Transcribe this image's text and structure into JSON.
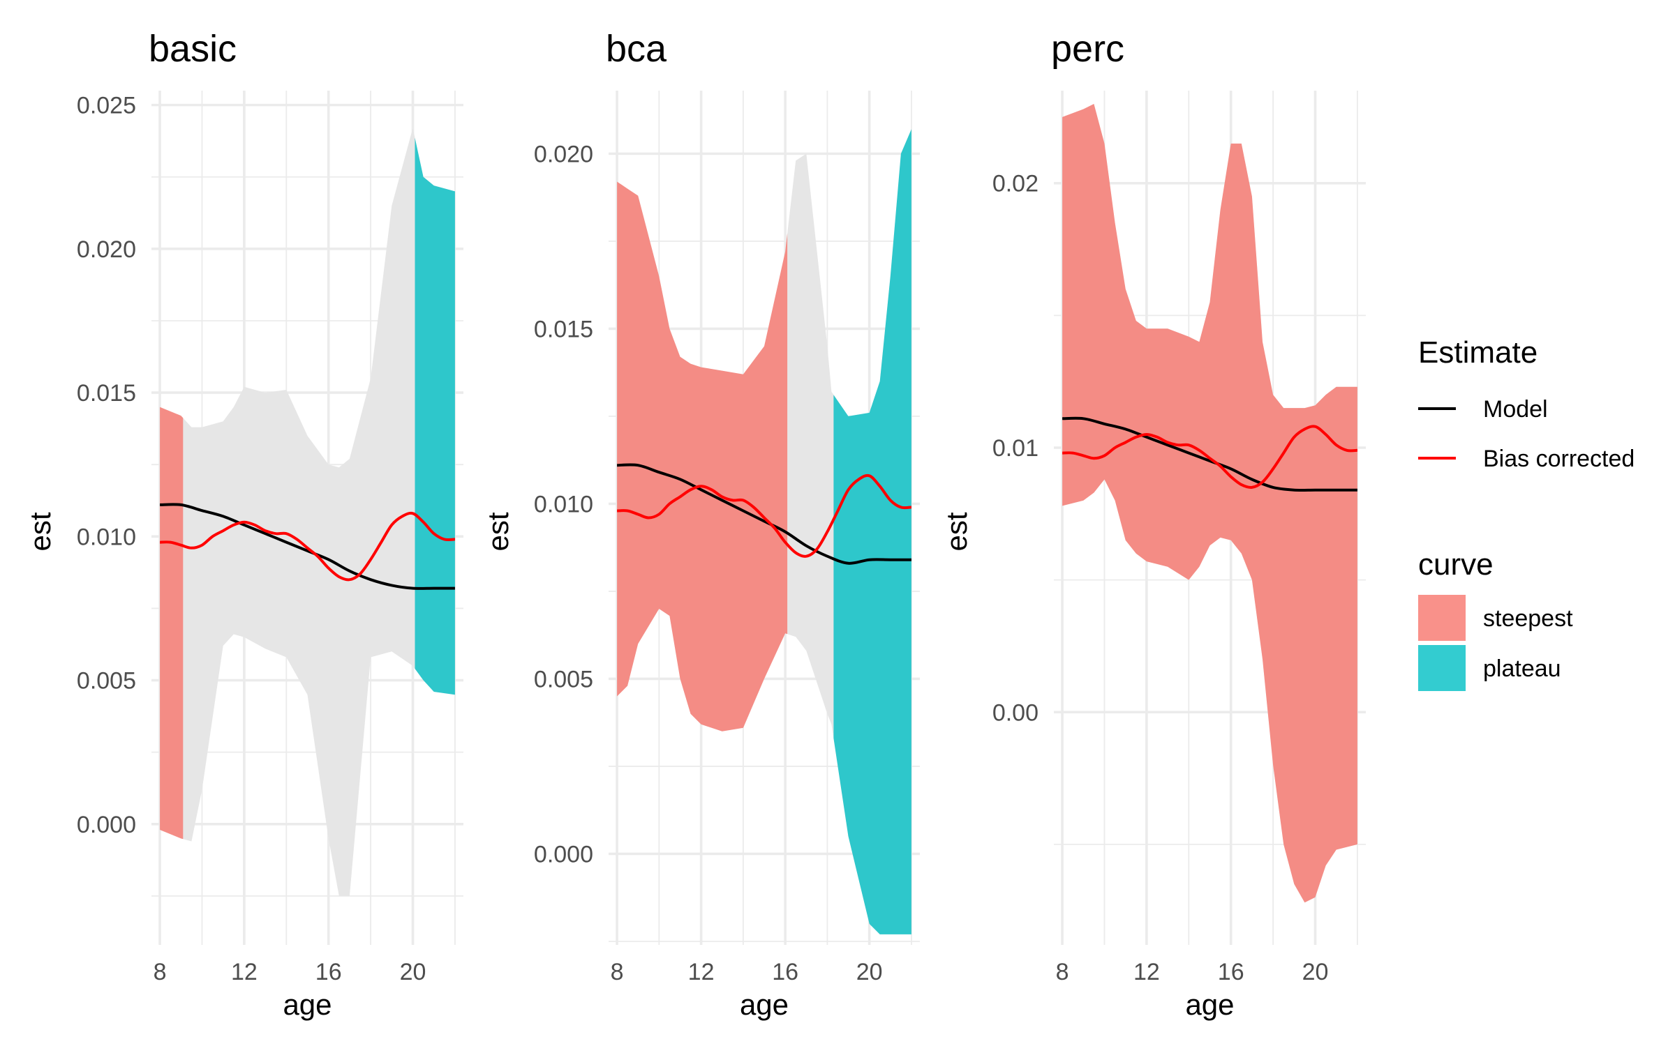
{
  "chart_data": [
    {
      "type": "area",
      "title": "basic",
      "xlabel": "age",
      "ylabel": "est",
      "xlim": [
        7.6,
        22.4
      ],
      "ylim": [
        -0.0042,
        0.0255
      ],
      "x_ticks": [
        "8",
        "12",
        "16",
        "20"
      ],
      "x_tick_values": [
        8,
        12,
        16,
        20
      ],
      "y_ticks": [
        "0.000",
        "0.005",
        "0.010",
        "0.015",
        "0.020",
        "0.025"
      ],
      "y_tick_values": [
        0.0,
        0.005,
        0.01,
        0.015,
        0.02,
        0.025
      ],
      "ribbon": {
        "x": [
          8,
          9,
          9.5,
          10,
          11,
          11.5,
          12,
          13,
          14,
          15,
          16,
          16.5,
          17,
          18,
          19,
          20,
          20.5,
          21,
          22
        ],
        "lower": [
          -0.0002,
          -0.0005,
          -0.0006,
          0.0012,
          0.0062,
          0.0066,
          0.0065,
          0.0061,
          0.0058,
          0.0045,
          -0.0005,
          -0.0025,
          -0.0025,
          0.0058,
          0.006,
          0.0055,
          0.005,
          0.0046,
          0.0045
        ],
        "upper": [
          0.0145,
          0.0142,
          0.0138,
          0.0138,
          0.014,
          0.0145,
          0.0152,
          0.015,
          0.0151,
          0.0135,
          0.0125,
          0.0124,
          0.0127,
          0.0155,
          0.0215,
          0.0242,
          0.0225,
          0.0222,
          0.022
        ]
      },
      "segments": [
        {
          "curve": "steepest",
          "x_from": 8,
          "x_to": 9.1
        },
        {
          "curve": "plateau",
          "x_from": 20.1,
          "x_to": 22
        }
      ],
      "model": {
        "x": [
          8,
          9,
          10,
          11,
          12,
          13,
          14,
          15,
          16,
          17,
          18,
          19,
          20,
          21,
          22
        ],
        "y": [
          0.0111,
          0.0111,
          0.0109,
          0.0107,
          0.0104,
          0.0101,
          0.0098,
          0.0095,
          0.0092,
          0.0088,
          0.0085,
          0.0083,
          0.0082,
          0.0082,
          0.0082
        ]
      },
      "bias_corrected": {
        "x": [
          8,
          8.5,
          9,
          9.5,
          10,
          10.5,
          11,
          11.5,
          12,
          12.5,
          13,
          13.5,
          14,
          14.5,
          15,
          15.5,
          16,
          16.5,
          17,
          17.5,
          18,
          18.5,
          19,
          19.5,
          20,
          20.5,
          21,
          21.5,
          22
        ],
        "y": [
          0.0098,
          0.0098,
          0.0097,
          0.0096,
          0.0097,
          0.01,
          0.0102,
          0.0104,
          0.0105,
          0.0104,
          0.0102,
          0.0101,
          0.0101,
          0.0099,
          0.0096,
          0.0093,
          0.0089,
          0.0086,
          0.0085,
          0.0087,
          0.0092,
          0.0098,
          0.0104,
          0.0107,
          0.0108,
          0.0105,
          0.0101,
          0.0099,
          0.0099
        ]
      }
    },
    {
      "type": "area",
      "title": "bca",
      "xlabel": "age",
      "ylabel": "est",
      "xlim": [
        7.6,
        22.4
      ],
      "ylim": [
        -0.0026,
        0.0218
      ],
      "x_ticks": [
        "8",
        "12",
        "16",
        "20"
      ],
      "x_tick_values": [
        8,
        12,
        16,
        20
      ],
      "y_ticks": [
        "0.000",
        "0.005",
        "0.010",
        "0.015",
        "0.020"
      ],
      "y_tick_values": [
        0.0,
        0.005,
        0.01,
        0.015,
        0.02
      ],
      "ribbon": {
        "x": [
          8,
          8.5,
          9,
          10,
          10.5,
          11,
          11.5,
          12,
          13,
          14,
          15,
          16,
          16.5,
          17,
          18,
          18.2,
          19,
          20,
          20.5,
          21,
          21.5,
          22
        ],
        "lower": [
          0.0045,
          0.0048,
          0.006,
          0.007,
          0.0068,
          0.005,
          0.004,
          0.0037,
          0.0035,
          0.0036,
          0.005,
          0.0063,
          0.0062,
          0.0058,
          0.004,
          0.0037,
          0.0005,
          -0.002,
          -0.0023,
          -0.0023,
          -0.0023,
          -0.0023
        ],
        "upper": [
          0.0192,
          0.019,
          0.0188,
          0.0165,
          0.015,
          0.0142,
          0.014,
          0.0139,
          0.0138,
          0.0137,
          0.0145,
          0.0172,
          0.0198,
          0.02,
          0.0145,
          0.0132,
          0.0125,
          0.0126,
          0.0135,
          0.0165,
          0.02,
          0.0207
        ]
      },
      "segments": [
        {
          "curve": "steepest",
          "x_from": 8,
          "x_to": 16.1
        },
        {
          "curve": "plateau",
          "x_from": 18.3,
          "x_to": 22
        }
      ],
      "model": {
        "x": [
          8,
          9,
          10,
          11,
          12,
          13,
          14,
          15,
          16,
          17,
          18,
          19,
          20,
          21,
          22
        ],
        "y": [
          0.0111,
          0.0111,
          0.0109,
          0.0107,
          0.0104,
          0.0101,
          0.0098,
          0.0095,
          0.0092,
          0.0088,
          0.0085,
          0.0083,
          0.0084,
          0.0084,
          0.0084
        ]
      },
      "bias_corrected": {
        "x": [
          8,
          8.5,
          9,
          9.5,
          10,
          10.5,
          11,
          11.5,
          12,
          12.5,
          13,
          13.5,
          14,
          14.5,
          15,
          15.5,
          16,
          16.5,
          17,
          17.5,
          18,
          18.5,
          19,
          19.5,
          20,
          20.5,
          21,
          21.5,
          22
        ],
        "y": [
          0.0098,
          0.0098,
          0.0097,
          0.0096,
          0.0097,
          0.01,
          0.0102,
          0.0104,
          0.0105,
          0.0104,
          0.0102,
          0.0101,
          0.0101,
          0.0099,
          0.0096,
          0.0093,
          0.0089,
          0.0086,
          0.0085,
          0.0087,
          0.0092,
          0.0098,
          0.0104,
          0.0107,
          0.0108,
          0.0105,
          0.0101,
          0.0099,
          0.0099
        ]
      }
    },
    {
      "type": "area",
      "title": "perc",
      "xlabel": "age",
      "ylabel": "est",
      "xlim": [
        7.6,
        22.4
      ],
      "ylim": [
        -0.0088,
        0.0235
      ],
      "x_ticks": [
        "8",
        "12",
        "16",
        "20"
      ],
      "x_tick_values": [
        8,
        12,
        16,
        20
      ],
      "y_ticks": [
        "0.00",
        "0.01",
        "0.02"
      ],
      "y_tick_values": [
        0.0,
        0.01,
        0.02
      ],
      "ribbon": {
        "x": [
          8,
          9,
          9.5,
          10,
          10.5,
          11,
          11.5,
          12,
          13,
          14,
          14.5,
          15,
          15.5,
          16,
          16.5,
          17,
          17.5,
          18,
          18.5,
          19,
          19.5,
          20,
          20.5,
          21,
          22
        ],
        "lower": [
          0.0078,
          0.008,
          0.0083,
          0.0088,
          0.008,
          0.0065,
          0.006,
          0.0057,
          0.0055,
          0.005,
          0.0055,
          0.0063,
          0.0066,
          0.0065,
          0.006,
          0.005,
          0.002,
          -0.002,
          -0.005,
          -0.0065,
          -0.0072,
          -0.007,
          -0.0058,
          -0.0052,
          -0.005
        ],
        "upper": [
          0.0225,
          0.0228,
          0.023,
          0.0215,
          0.0185,
          0.016,
          0.0148,
          0.0145,
          0.0145,
          0.0142,
          0.014,
          0.0155,
          0.019,
          0.0215,
          0.0215,
          0.0195,
          0.014,
          0.012,
          0.0115,
          0.0115,
          0.0115,
          0.0116,
          0.012,
          0.0123,
          0.0123
        ]
      },
      "segments": [
        {
          "curve": "steepest",
          "x_from": 8,
          "x_to": 22
        }
      ],
      "model": {
        "x": [
          8,
          9,
          10,
          11,
          12,
          13,
          14,
          15,
          16,
          17,
          18,
          19,
          20,
          21,
          22
        ],
        "y": [
          0.0111,
          0.0111,
          0.0109,
          0.0107,
          0.0104,
          0.0101,
          0.0098,
          0.0095,
          0.0092,
          0.0088,
          0.0085,
          0.0084,
          0.0084,
          0.0084,
          0.0084
        ]
      },
      "bias_corrected": {
        "x": [
          8,
          8.5,
          9,
          9.5,
          10,
          10.5,
          11,
          11.5,
          12,
          12.5,
          13,
          13.5,
          14,
          14.5,
          15,
          15.5,
          16,
          16.5,
          17,
          17.5,
          18,
          18.5,
          19,
          19.5,
          20,
          20.5,
          21,
          21.5,
          22
        ],
        "y": [
          0.0098,
          0.0098,
          0.0097,
          0.0096,
          0.0097,
          0.01,
          0.0102,
          0.0104,
          0.0105,
          0.0104,
          0.0102,
          0.0101,
          0.0101,
          0.0099,
          0.0096,
          0.0093,
          0.0089,
          0.0086,
          0.0085,
          0.0087,
          0.0092,
          0.0098,
          0.0104,
          0.0107,
          0.0108,
          0.0105,
          0.0101,
          0.0099,
          0.0099
        ]
      }
    }
  ],
  "legend": {
    "placement": "right",
    "estimate": {
      "title": "Estimate",
      "items": [
        {
          "label": "Model",
          "color": "#000000"
        },
        {
          "label": "Bias corrected",
          "color": "#ff0000"
        }
      ]
    },
    "curve": {
      "title": "curve",
      "items": [
        {
          "key": "steepest",
          "label": "steepest",
          "color": "#F8766D"
        },
        {
          "key": "plateau",
          "label": "plateau",
          "color": "#00BFC4"
        }
      ]
    }
  },
  "colors": {
    "ribbon_gray": "#e6e6e6",
    "grid": "#ebebeb",
    "tick_text": "#4d4d4d"
  },
  "grid": true
}
